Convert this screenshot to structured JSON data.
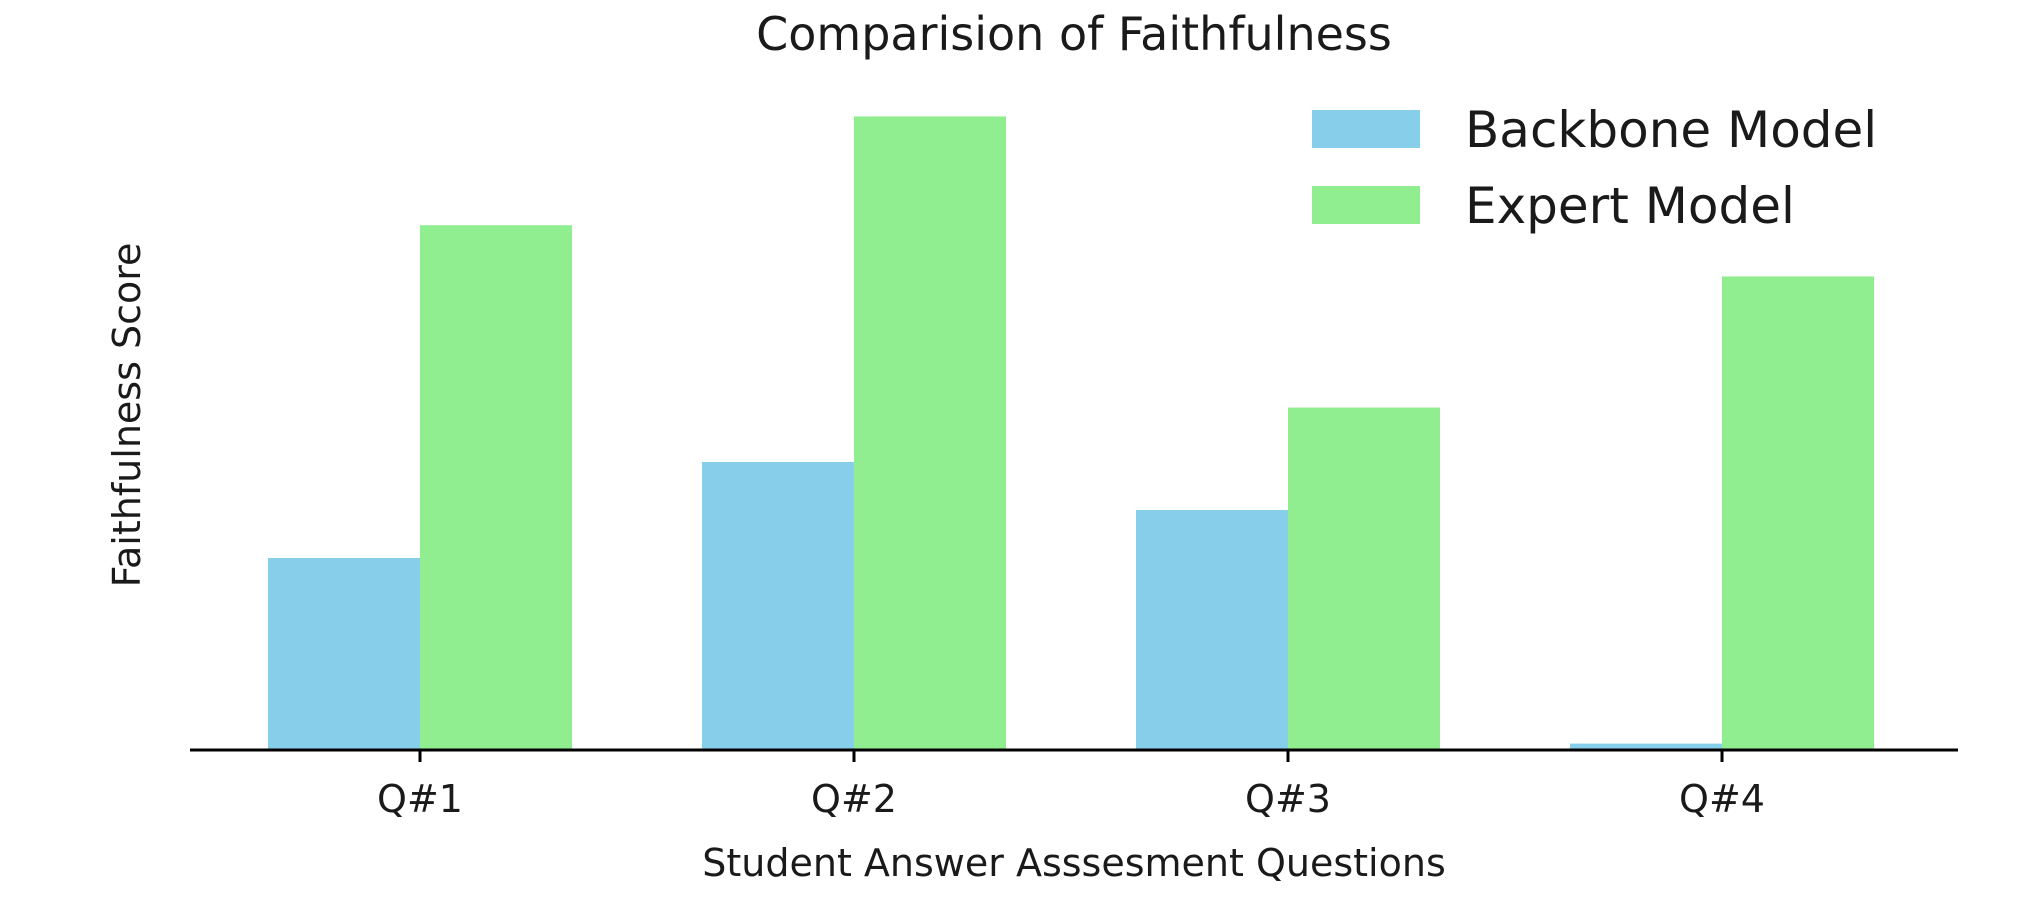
{
  "chart_data": {
    "type": "bar",
    "title": "Comparision of Faithfulness",
    "xlabel": "Student Answer Asssesment Questions",
    "ylabel": "Faithfulness Score",
    "categories": [
      "Q#1",
      "Q#2",
      "Q#3",
      "Q#4"
    ],
    "series": [
      {
        "name": "Backbone Model",
        "color": "#87CEEB",
        "values": [
          0.3,
          0.45,
          0.375,
          0.01
        ]
      },
      {
        "name": "Expert Model",
        "color": "#90EE90",
        "values": [
          0.82,
          0.99,
          0.535,
          0.74
        ]
      }
    ],
    "ylim": [
      0,
      1.0
    ],
    "grid": false,
    "y_ticks_visible": false,
    "legend_position": "top-right"
  }
}
